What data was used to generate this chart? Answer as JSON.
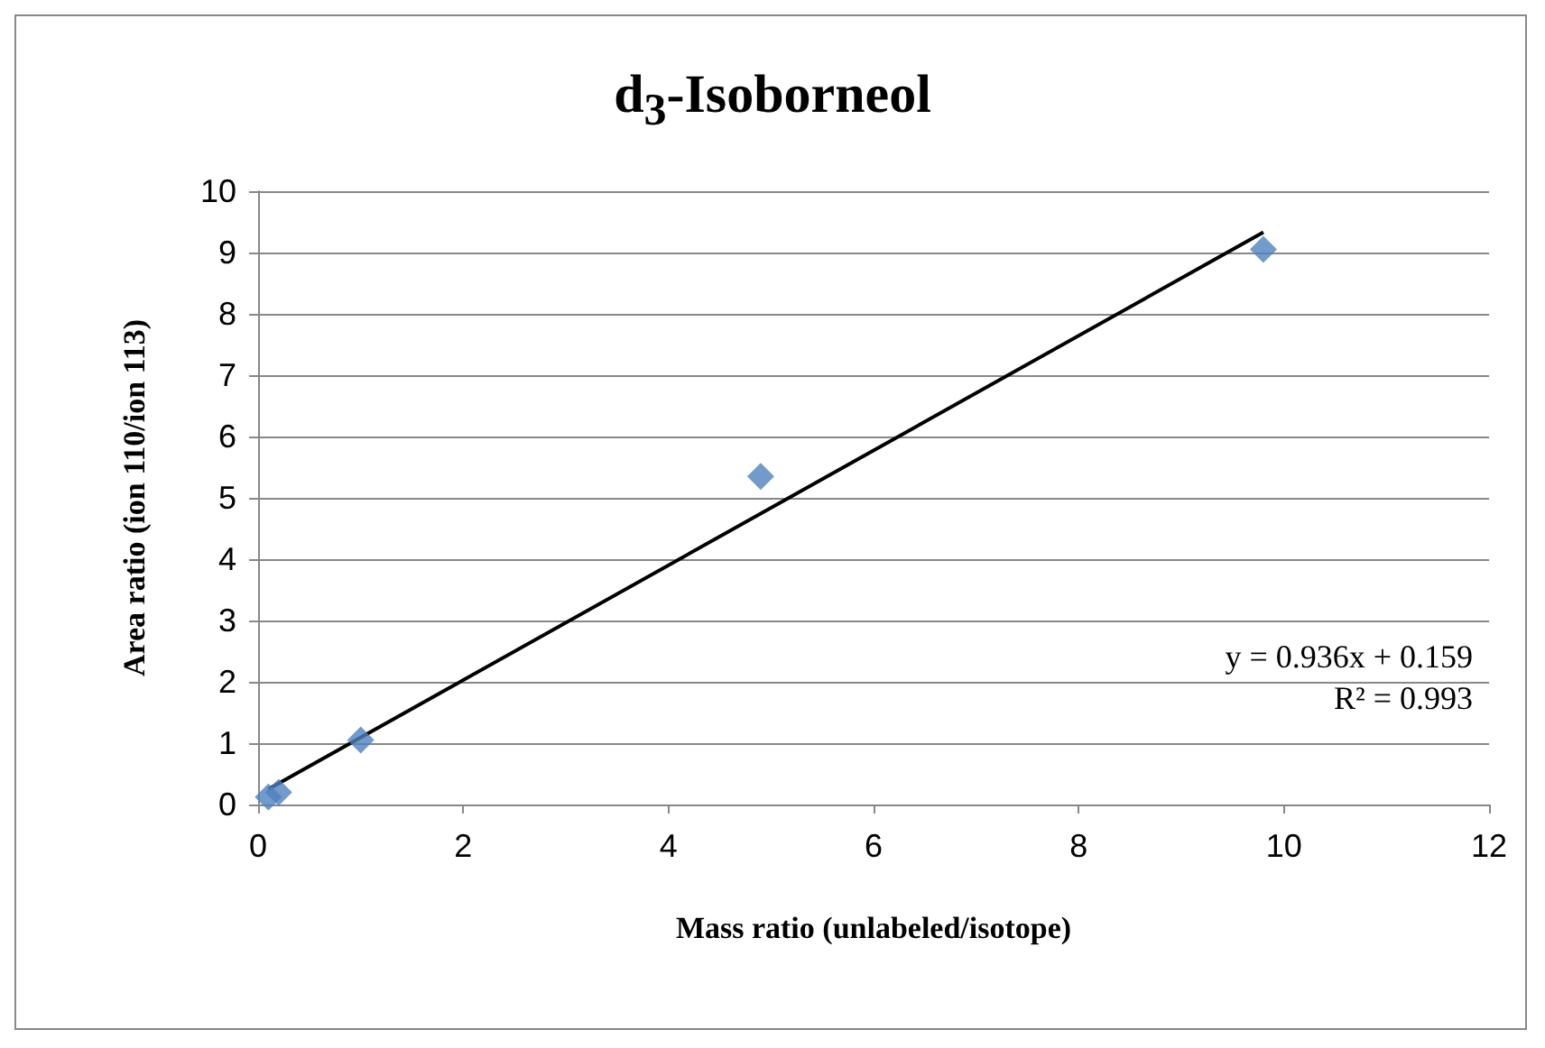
{
  "chart_data": {
    "type": "scatter",
    "title": "d$_{3}$-Isoborneol",
    "xlabel": "Mass ratio (unlabeled/isotope)",
    "ylabel": "Area ratio (ion 110/ion 113)",
    "series": [
      {
        "color": "#4f81bd",
        "marker": "diamond",
        "x": [
          0.1,
          0.2,
          1.0,
          4.9,
          9.8
        ],
        "values": [
          0.12,
          0.2,
          1.05,
          5.35,
          9.05
        ]
      },
      {
        "type": "line",
        "color": "#000000",
        "marker": "none",
        "x": [
          0.1,
          9.8
        ],
        "values": [
          0.25,
          9.33
        ]
      }
    ],
    "annotations": [
      "y = 0.936x + 0.159",
      "R² = 0.993"
    ],
    "xlim": [
      0,
      12
    ],
    "xticks": [
      0,
      2,
      4,
      6,
      8,
      10,
      12
    ],
    "ylim": [
      0,
      10
    ],
    "yticks": [
      0,
      1,
      2,
      3,
      4,
      5,
      6,
      7,
      8,
      9,
      10
    ],
    "grid": "y"
  }
}
